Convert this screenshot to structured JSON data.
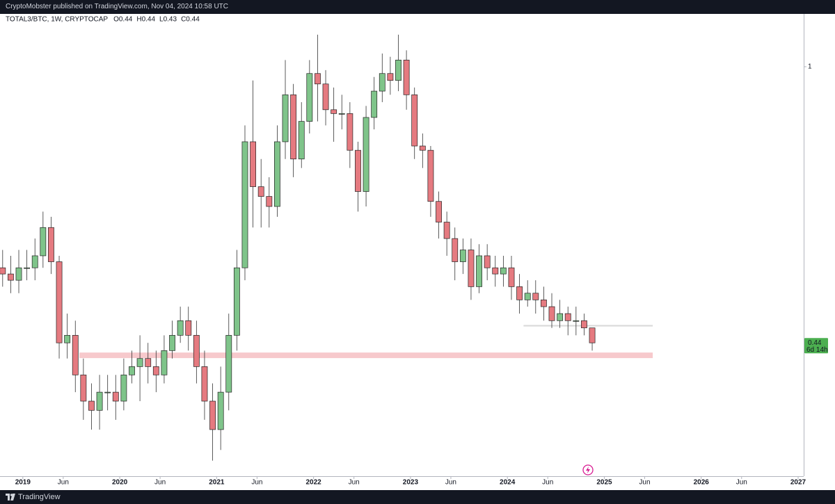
{
  "header": {
    "text": "CryptoMobster published on TradingView.com, Nov 04, 2024 10:58 UTC"
  },
  "footer": {
    "brand": "TradingView"
  },
  "chart_data": {
    "type": "candlestick",
    "symbol": "TOTAL3/BTC, 1W, CRYPTOCAP",
    "ohlc": [
      {
        "label": "O",
        "value": 0.44
      },
      {
        "label": "H",
        "value": 0.44
      },
      {
        "label": "L",
        "value": 0.43
      },
      {
        "label": "C",
        "value": 0.44
      }
    ],
    "last_price": {
      "value": 0.44,
      "countdown": "6d 14h"
    },
    "log_scale": true,
    "up_color": "#7fc48a",
    "down_color": "#e57a80",
    "ylim": [
      0.296,
      1.17
    ],
    "yticks": [
      1
    ],
    "xlim": [
      "2018-10",
      "2027-01"
    ],
    "xticks": [
      {
        "value": "2019-01",
        "label": "2019"
      },
      {
        "value": "2019-06",
        "label": "Jun"
      },
      {
        "value": "2020-01",
        "label": "2020"
      },
      {
        "value": "2020-06",
        "label": "Jun"
      },
      {
        "value": "2021-01",
        "label": "2021"
      },
      {
        "value": "2021-06",
        "label": "Jun"
      },
      {
        "value": "2022-01",
        "label": "2022"
      },
      {
        "value": "2022-06",
        "label": "Jun"
      },
      {
        "value": "2023-01",
        "label": "2023"
      },
      {
        "value": "2023-06",
        "label": "Jun"
      },
      {
        "value": "2024-01",
        "label": "2024"
      },
      {
        "value": "2024-06",
        "label": "Jun"
      },
      {
        "value": "2025-01",
        "label": "2025"
      },
      {
        "value": "2025-06",
        "label": "Jun"
      },
      {
        "value": "2026-01",
        "label": "2026"
      },
      {
        "value": "2026-06",
        "label": "Jun"
      },
      {
        "value": "2027-01",
        "label": "2027"
      }
    ],
    "x": [
      "2018-10",
      "2018-11",
      "2018-12",
      "2019-01",
      "2019-02",
      "2019-03",
      "2019-04",
      "2019-05",
      "2019-06",
      "2019-07",
      "2019-08",
      "2019-09",
      "2019-10",
      "2019-11",
      "2019-12",
      "2020-01",
      "2020-02",
      "2020-03",
      "2020-04",
      "2020-05",
      "2020-06",
      "2020-07",
      "2020-08",
      "2020-09",
      "2020-10",
      "2020-11",
      "2020-12",
      "2021-01",
      "2021-02",
      "2021-03",
      "2021-04",
      "2021-05",
      "2021-06",
      "2021-07",
      "2021-08",
      "2021-09",
      "2021-10",
      "2021-11",
      "2021-12",
      "2022-01",
      "2022-02",
      "2022-03",
      "2022-04",
      "2022-05",
      "2022-06",
      "2022-07",
      "2022-08",
      "2022-09",
      "2022-10",
      "2022-11",
      "2022-12",
      "2023-01",
      "2023-02",
      "2023-03",
      "2023-04",
      "2023-05",
      "2023-06",
      "2023-07",
      "2023-08",
      "2023-09",
      "2023-10",
      "2023-11",
      "2023-12",
      "2024-01",
      "2024-02",
      "2024-03",
      "2024-04",
      "2024-05",
      "2024-06",
      "2024-07",
      "2024-08",
      "2024-09",
      "2024-10",
      "2024-11"
    ],
    "open": [
      0.55,
      0.54,
      0.53,
      0.55,
      0.55,
      0.57,
      0.62,
      0.56,
      0.44,
      0.45,
      0.4,
      0.37,
      0.36,
      0.38,
      0.38,
      0.37,
      0.4,
      0.41,
      0.42,
      0.41,
      0.4,
      0.43,
      0.45,
      0.47,
      0.45,
      0.41,
      0.37,
      0.34,
      0.38,
      0.45,
      0.55,
      0.8,
      0.7,
      0.68,
      0.66,
      0.8,
      0.92,
      0.76,
      0.85,
      0.98,
      0.95,
      0.88,
      0.87,
      0.87,
      0.78,
      0.69,
      0.86,
      0.93,
      0.98,
      0.96,
      1.02,
      0.92,
      0.79,
      0.78,
      0.67,
      0.63,
      0.6,
      0.56,
      0.58,
      0.52,
      0.57,
      0.55,
      0.54,
      0.55,
      0.52,
      0.5,
      0.51,
      0.5,
      0.49,
      0.47,
      0.48,
      0.47,
      0.47,
      0.46
    ],
    "high": [
      0.58,
      0.57,
      0.58,
      0.58,
      0.6,
      0.65,
      0.64,
      0.57,
      0.48,
      0.47,
      0.42,
      0.39,
      0.4,
      0.4,
      0.4,
      0.42,
      0.43,
      0.45,
      0.44,
      0.43,
      0.45,
      0.47,
      0.49,
      0.49,
      0.47,
      0.43,
      0.39,
      0.41,
      0.48,
      0.58,
      0.84,
      0.96,
      0.76,
      0.72,
      0.84,
      1.02,
      0.95,
      0.9,
      1.02,
      1.1,
      0.99,
      0.94,
      0.92,
      0.9,
      0.8,
      0.89,
      0.97,
      1.04,
      1.03,
      1.1,
      1.05,
      0.94,
      0.82,
      0.79,
      0.69,
      0.65,
      0.62,
      0.6,
      0.6,
      0.59,
      0.59,
      0.57,
      0.57,
      0.57,
      0.54,
      0.53,
      0.53,
      0.52,
      0.51,
      0.5,
      0.49,
      0.49,
      0.48,
      0.46
    ],
    "low": [
      0.52,
      0.51,
      0.51,
      0.53,
      0.53,
      0.55,
      0.54,
      0.42,
      0.42,
      0.38,
      0.35,
      0.34,
      0.34,
      0.36,
      0.35,
      0.36,
      0.39,
      0.37,
      0.39,
      0.38,
      0.39,
      0.42,
      0.44,
      0.43,
      0.39,
      0.35,
      0.31,
      0.32,
      0.36,
      0.43,
      0.53,
      0.62,
      0.62,
      0.62,
      0.64,
      0.76,
      0.72,
      0.74,
      0.82,
      0.85,
      0.84,
      0.8,
      0.83,
      0.74,
      0.65,
      0.66,
      0.83,
      0.9,
      0.92,
      0.93,
      0.88,
      0.76,
      0.74,
      0.64,
      0.6,
      0.57,
      0.53,
      0.54,
      0.5,
      0.51,
      0.53,
      0.52,
      0.52,
      0.5,
      0.48,
      0.49,
      0.48,
      0.47,
      0.46,
      0.46,
      0.45,
      0.45,
      0.45,
      0.43
    ],
    "close": [
      0.54,
      0.53,
      0.55,
      0.55,
      0.57,
      0.62,
      0.56,
      0.44,
      0.45,
      0.4,
      0.37,
      0.36,
      0.38,
      0.38,
      0.37,
      0.4,
      0.41,
      0.42,
      0.41,
      0.4,
      0.43,
      0.45,
      0.47,
      0.45,
      0.41,
      0.37,
      0.34,
      0.38,
      0.45,
      0.55,
      0.8,
      0.7,
      0.68,
      0.66,
      0.8,
      0.92,
      0.76,
      0.85,
      0.98,
      0.95,
      0.88,
      0.87,
      0.87,
      0.78,
      0.69,
      0.86,
      0.93,
      0.98,
      0.96,
      1.02,
      0.92,
      0.79,
      0.78,
      0.67,
      0.63,
      0.6,
      0.56,
      0.58,
      0.52,
      0.57,
      0.55,
      0.54,
      0.55,
      0.52,
      0.5,
      0.51,
      0.5,
      0.49,
      0.47,
      0.48,
      0.47,
      0.47,
      0.46,
      0.44
    ],
    "zones": [
      {
        "color": "#f7c9cc",
        "x": [
          "2019-08",
          "2025-07"
        ],
        "y": [
          0.4205,
          0.4275
        ]
      },
      {
        "color": "#d9d9d9",
        "x": [
          "2024-03",
          "2025-07"
        ],
        "y": [
          0.462,
          0.464
        ]
      }
    ]
  }
}
